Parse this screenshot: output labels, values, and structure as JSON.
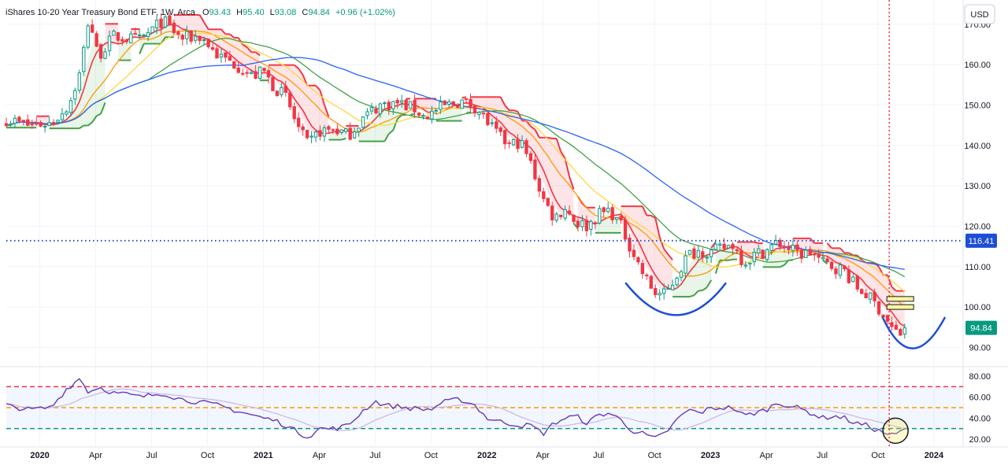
{
  "header": {
    "title": "iShares 10-20 Year Treasury Bond ETF, 1W, Arca",
    "o_label": "O",
    "o": "93.43",
    "h_label": "H",
    "h": "95.40",
    "l_label": "L",
    "l": "93.08",
    "c_label": "C",
    "c": "94.84",
    "change": "+0.96 (+1.02%)"
  },
  "currency": "USD",
  "colors": {
    "up": "#089981",
    "down": "#f23645",
    "ma_orange": "#ff9800",
    "ma_yellow": "#ffd740",
    "ma_green": "#43a047",
    "ma_blue": "#2962ff",
    "rsi": "#673ab7",
    "arc": "#1e4ed8"
  },
  "chart_data": [
    {
      "type": "candlestick",
      "name": "price",
      "ylim": [
        86,
        176
      ],
      "y_ticks": [
        "170.00",
        "160.00",
        "150.00",
        "140.00",
        "130.00",
        "120.00",
        "110.00",
        "100.00",
        "90.00"
      ],
      "x_ticks": [
        {
          "label": "2020",
          "t": 2020.0,
          "year": true
        },
        {
          "label": "Apr",
          "t": 2020.25
        },
        {
          "label": "Jul",
          "t": 2020.5
        },
        {
          "label": "Oct",
          "t": 2020.75
        },
        {
          "label": "2021",
          "t": 2021.0,
          "year": true
        },
        {
          "label": "Apr",
          "t": 2021.25
        },
        {
          "label": "Jul",
          "t": 2021.5
        },
        {
          "label": "Oct",
          "t": 2021.75
        },
        {
          "label": "2022",
          "t": 2022.0,
          "year": true
        },
        {
          "label": "Apr",
          "t": 2022.25
        },
        {
          "label": "Jul",
          "t": 2022.5
        },
        {
          "label": "Oct",
          "t": 2022.75
        },
        {
          "label": "2023",
          "t": 2023.0,
          "year": true
        },
        {
          "label": "Apr",
          "t": 2023.25
        },
        {
          "label": "Jul",
          "t": 2023.5
        },
        {
          "label": "Oct",
          "t": 2023.75
        },
        {
          "label": "2024",
          "t": 2024.0,
          "year": true
        }
      ],
      "close_anchors": [
        [
          2019.85,
          146.5
        ],
        [
          2019.95,
          145.0
        ],
        [
          2020.05,
          145.5
        ],
        [
          2020.13,
          150.0
        ],
        [
          2020.18,
          158.0
        ],
        [
          2020.22,
          172.0
        ],
        [
          2020.26,
          162.0
        ],
        [
          2020.33,
          167.0
        ],
        [
          2020.45,
          166.0
        ],
        [
          2020.55,
          171.0
        ],
        [
          2020.63,
          166.5
        ],
        [
          2020.72,
          167.0
        ],
        [
          2020.8,
          162.0
        ],
        [
          2020.88,
          160.0
        ],
        [
          2020.95,
          157.0
        ],
        [
          2021.0,
          158.5
        ],
        [
          2021.04,
          155.0
        ],
        [
          2021.1,
          152.0
        ],
        [
          2021.15,
          145.0
        ],
        [
          2021.2,
          140.0
        ],
        [
          2021.25,
          143.5
        ],
        [
          2021.32,
          144.0
        ],
        [
          2021.38,
          142.5
        ],
        [
          2021.45,
          147.0
        ],
        [
          2021.52,
          150.0
        ],
        [
          2021.6,
          150.5
        ],
        [
          2021.68,
          149.0
        ],
        [
          2021.72,
          147.0
        ],
        [
          2021.8,
          149.5
        ],
        [
          2021.88,
          151.0
        ],
        [
          2021.95,
          149.5
        ],
        [
          2022.0,
          146.0
        ],
        [
          2022.05,
          142.5
        ],
        [
          2022.1,
          140.0
        ],
        [
          2022.15,
          141.0
        ],
        [
          2022.2,
          135.0
        ],
        [
          2022.25,
          127.0
        ],
        [
          2022.3,
          122.0
        ],
        [
          2022.35,
          124.5
        ],
        [
          2022.4,
          121.0
        ],
        [
          2022.45,
          120.0
        ],
        [
          2022.5,
          123.0
        ],
        [
          2022.55,
          124.0
        ],
        [
          2022.6,
          120.0
        ],
        [
          2022.65,
          114.0
        ],
        [
          2022.7,
          108.0
        ],
        [
          2022.75,
          103.5
        ],
        [
          2022.8,
          103.0
        ],
        [
          2022.85,
          108.0
        ],
        [
          2022.9,
          113.0
        ],
        [
          2022.95,
          114.0
        ],
        [
          2023.0,
          113.5
        ],
        [
          2023.05,
          114.5
        ],
        [
          2023.1,
          115.5
        ],
        [
          2023.15,
          111.0
        ],
        [
          2023.2,
          113.0
        ],
        [
          2023.25,
          114.0
        ],
        [
          2023.3,
          116.0
        ],
        [
          2023.35,
          114.5
        ],
        [
          2023.4,
          113.0
        ],
        [
          2023.45,
          113.5
        ],
        [
          2023.5,
          111.0
        ],
        [
          2023.55,
          110.0
        ],
        [
          2023.6,
          109.0
        ],
        [
          2023.65,
          105.0
        ],
        [
          2023.7,
          103.0
        ],
        [
          2023.75,
          100.0
        ],
        [
          2023.78,
          97.5
        ],
        [
          2023.82,
          94.0
        ],
        [
          2023.85,
          93.4
        ],
        [
          2023.87,
          94.84
        ]
      ],
      "last_close": 94.84,
      "last_close_label": "94.84",
      "hline": {
        "value": 116.41,
        "label": "116.41"
      },
      "marker_time": 2023.8,
      "annotations": [
        {
          "type": "arc",
          "from": [
            2022.62,
            106
          ],
          "control": [
            2022.85,
            90
          ],
          "to": [
            2023.07,
            106
          ]
        },
        {
          "type": "arc",
          "from": [
            2023.77,
            97.5
          ],
          "control": [
            2023.9,
            82
          ],
          "to": [
            2024.05,
            97.5
          ]
        },
        {
          "type": "boxes",
          "t": 2023.8,
          "values": [
            100.0,
            102.0
          ]
        }
      ]
    },
    {
      "type": "line",
      "name": "rsi",
      "ylim": [
        14,
        86
      ],
      "y_ticks": [
        "80.00",
        "60.00",
        "40.00",
        "20.00"
      ],
      "levels": [
        70,
        50,
        30
      ],
      "band": [
        30,
        70
      ],
      "anchors": [
        [
          2019.85,
          52
        ],
        [
          2019.95,
          48
        ],
        [
          2020.05,
          50
        ],
        [
          2020.12,
          68
        ],
        [
          2020.18,
          78
        ],
        [
          2020.22,
          64
        ],
        [
          2020.26,
          70
        ],
        [
          2020.33,
          64
        ],
        [
          2020.38,
          63
        ],
        [
          2020.45,
          60
        ],
        [
          2020.55,
          64
        ],
        [
          2020.63,
          58
        ],
        [
          2020.72,
          55
        ],
        [
          2020.8,
          52
        ],
        [
          2020.88,
          47
        ],
        [
          2020.95,
          43
        ],
        [
          2021.0,
          40
        ],
        [
          2021.05,
          38
        ],
        [
          2021.1,
          33
        ],
        [
          2021.16,
          26
        ],
        [
          2021.2,
          22
        ],
        [
          2021.25,
          30
        ],
        [
          2021.32,
          30
        ],
        [
          2021.38,
          33
        ],
        [
          2021.45,
          48
        ],
        [
          2021.5,
          56
        ],
        [
          2021.55,
          52
        ],
        [
          2021.6,
          51
        ],
        [
          2021.68,
          49
        ],
        [
          2021.75,
          48
        ],
        [
          2021.8,
          55
        ],
        [
          2021.88,
          58
        ],
        [
          2021.95,
          52
        ],
        [
          2022.0,
          40
        ],
        [
          2022.05,
          37
        ],
        [
          2022.1,
          35
        ],
        [
          2022.15,
          33
        ],
        [
          2022.2,
          33
        ],
        [
          2022.25,
          25
        ],
        [
          2022.3,
          35
        ],
        [
          2022.35,
          40
        ],
        [
          2022.4,
          42
        ],
        [
          2022.45,
          35
        ],
        [
          2022.5,
          43
        ],
        [
          2022.55,
          45
        ],
        [
          2022.6,
          38
        ],
        [
          2022.65,
          28
        ],
        [
          2022.7,
          25
        ],
        [
          2022.75,
          20
        ],
        [
          2022.8,
          26
        ],
        [
          2022.85,
          38
        ],
        [
          2022.9,
          48
        ],
        [
          2022.95,
          45
        ],
        [
          2023.0,
          49
        ],
        [
          2023.05,
          50
        ],
        [
          2023.1,
          50
        ],
        [
          2023.15,
          42
        ],
        [
          2023.2,
          45
        ],
        [
          2023.25,
          48
        ],
        [
          2023.3,
          55
        ],
        [
          2023.35,
          52
        ],
        [
          2023.4,
          49
        ],
        [
          2023.45,
          45
        ],
        [
          2023.5,
          40
        ],
        [
          2023.55,
          42
        ],
        [
          2023.6,
          40
        ],
        [
          2023.65,
          35
        ],
        [
          2023.7,
          33
        ],
        [
          2023.75,
          28
        ],
        [
          2023.78,
          26
        ],
        [
          2023.82,
          23
        ],
        [
          2023.85,
          27
        ],
        [
          2023.87,
          29
        ]
      ]
    }
  ]
}
